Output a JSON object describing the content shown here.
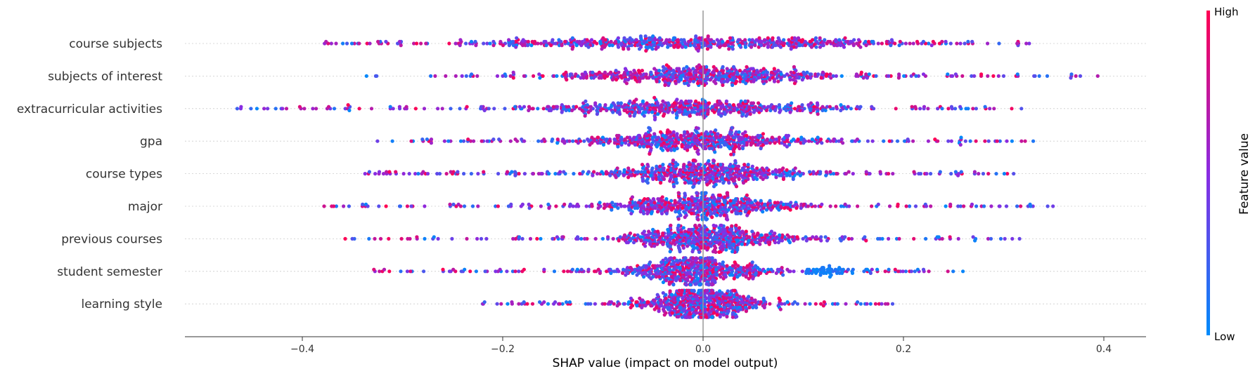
{
  "chart_data": {
    "type": "scatter",
    "subtype": "beeswarm",
    "title": "",
    "xlabel": "SHAP value (impact on model output)",
    "ylabel": "",
    "xlim": [
      -0.52,
      0.44
    ],
    "x_ticks": [
      -0.4,
      -0.2,
      0.0,
      0.2,
      0.4
    ],
    "x_tick_labels": [
      "−0.4",
      "−0.2",
      "0.0",
      "0.2",
      "0.4"
    ],
    "grid": false,
    "features": [
      {
        "name": "course subjects",
        "min": -0.39,
        "max": 0.35,
        "spread": 0.065,
        "cluster_centers": [
          -0.12,
          0.0,
          0.1
        ],
        "low_cluster": null
      },
      {
        "name": "subjects of interest",
        "min": -0.34,
        "max": 0.4,
        "spread": 0.06,
        "cluster_centers": [
          -0.04,
          0.03
        ],
        "low_cluster": null
      },
      {
        "name": "extracurricular activities",
        "min": -0.47,
        "max": 0.32,
        "spread": 0.07,
        "cluster_centers": [
          -0.04,
          0.02
        ],
        "low_cluster": null
      },
      {
        "name": "gpa",
        "min": -0.33,
        "max": 0.33,
        "spread": 0.06,
        "cluster_centers": [
          -0.02,
          0.01
        ],
        "low_cluster": null
      },
      {
        "name": "course types",
        "min": -0.34,
        "max": 0.31,
        "spread": 0.05,
        "cluster_centers": [
          0.0
        ],
        "low_cluster": null
      },
      {
        "name": "major",
        "min": -0.39,
        "max": 0.35,
        "spread": 0.05,
        "cluster_centers": [
          0.0
        ],
        "low_cluster": null
      },
      {
        "name": "previous courses",
        "min": -0.36,
        "max": 0.32,
        "spread": 0.045,
        "cluster_centers": [
          0.0
        ],
        "low_cluster": null
      },
      {
        "name": "student semester",
        "min": -0.33,
        "max": 0.26,
        "spread": 0.04,
        "cluster_centers": [
          -0.01
        ],
        "low_cluster": [
          0.1,
          0.14
        ]
      },
      {
        "name": "learning style",
        "min": -0.22,
        "max": 0.19,
        "spread": 0.03,
        "cluster_centers": [
          0.0
        ],
        "low_cluster": null
      }
    ],
    "colorbar": {
      "title": "Feature value",
      "high_label": "High",
      "low_label": "Low",
      "high_color": "#ff0052",
      "mid_color": "#8a2be2",
      "low_color": "#008bfb"
    },
    "zero_line_color": "#999999",
    "points_per_row": 600
  }
}
